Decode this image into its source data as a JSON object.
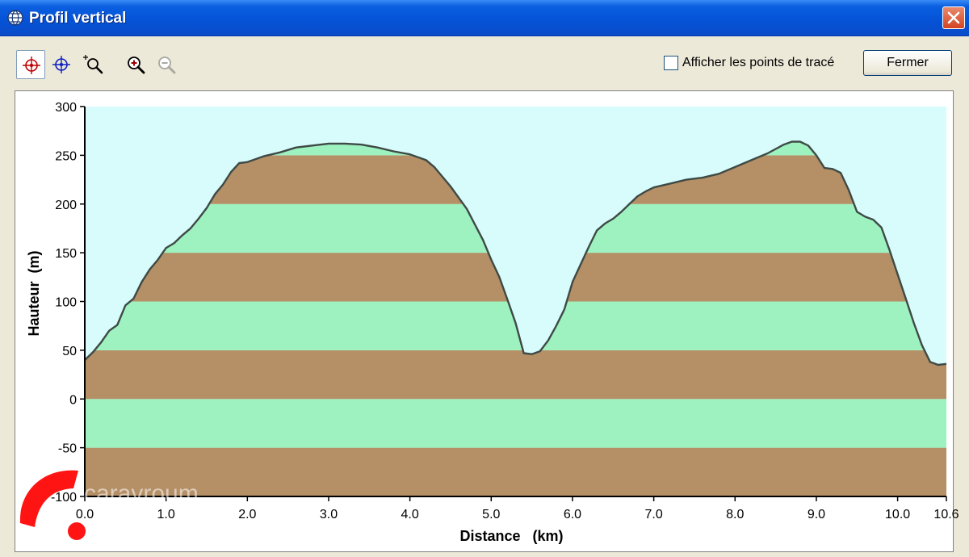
{
  "window": {
    "title": "Profil vertical"
  },
  "toolbar": {
    "tools": [
      {
        "name": "crosshair-red-tool",
        "active": true
      },
      {
        "name": "crosshair-blue-tool",
        "active": false
      },
      {
        "name": "zoom-box-tool",
        "active": false
      },
      {
        "name": "zoom-in-tool",
        "active": false
      },
      {
        "name": "zoom-out-tool",
        "active": false,
        "disabled": true
      }
    ],
    "show_points_label": "Afficher les points de tracé",
    "show_points_checked": false,
    "close_label": "Fermer"
  },
  "watermark_text": "caravroum",
  "chart_data": {
    "type": "area",
    "xlabel": "Distance   (km)",
    "ylabel": "Hauteur  (m)",
    "xlim": [
      0,
      10.6
    ],
    "ylim": [
      -100,
      300
    ],
    "x_ticks": [
      "0.0",
      "1.0",
      "2.0",
      "3.0",
      "4.0",
      "5.0",
      "6.0",
      "7.0",
      "8.0",
      "9.0",
      "10.0",
      "10.6"
    ],
    "y_ticks": [
      "300",
      "250",
      "200",
      "150",
      "100",
      "50",
      "0",
      "-50",
      "-100"
    ],
    "band_colors": [
      "#b58f65",
      "#9ef2c0"
    ],
    "sky_color": "#d8fcfc",
    "line_color": "#3e4a46",
    "points": [
      [
        0.0,
        40
      ],
      [
        0.1,
        48
      ],
      [
        0.2,
        58
      ],
      [
        0.3,
        70
      ],
      [
        0.4,
        76
      ],
      [
        0.5,
        96
      ],
      [
        0.6,
        103
      ],
      [
        0.7,
        120
      ],
      [
        0.8,
        133
      ],
      [
        0.9,
        143
      ],
      [
        1.0,
        155
      ],
      [
        1.1,
        160
      ],
      [
        1.2,
        168
      ],
      [
        1.3,
        175
      ],
      [
        1.4,
        185
      ],
      [
        1.5,
        196
      ],
      [
        1.6,
        210
      ],
      [
        1.7,
        220
      ],
      [
        1.8,
        233
      ],
      [
        1.9,
        242
      ],
      [
        2.0,
        243
      ],
      [
        2.2,
        249
      ],
      [
        2.4,
        253
      ],
      [
        2.6,
        258
      ],
      [
        2.8,
        260
      ],
      [
        3.0,
        262
      ],
      [
        3.2,
        262
      ],
      [
        3.4,
        261
      ],
      [
        3.6,
        258
      ],
      [
        3.8,
        254
      ],
      [
        4.0,
        251
      ],
      [
        4.2,
        245
      ],
      [
        4.3,
        238
      ],
      [
        4.5,
        218
      ],
      [
        4.7,
        195
      ],
      [
        4.9,
        163
      ],
      [
        5.0,
        143
      ],
      [
        5.1,
        125
      ],
      [
        5.2,
        102
      ],
      [
        5.3,
        78
      ],
      [
        5.4,
        47
      ],
      [
        5.5,
        46
      ],
      [
        5.6,
        49
      ],
      [
        5.7,
        60
      ],
      [
        5.8,
        75
      ],
      [
        5.9,
        92
      ],
      [
        6.0,
        120
      ],
      [
        6.1,
        138
      ],
      [
        6.2,
        156
      ],
      [
        6.3,
        173
      ],
      [
        6.4,
        180
      ],
      [
        6.5,
        185
      ],
      [
        6.6,
        192
      ],
      [
        6.7,
        200
      ],
      [
        6.8,
        208
      ],
      [
        6.9,
        213
      ],
      [
        7.0,
        217
      ],
      [
        7.2,
        221
      ],
      [
        7.4,
        225
      ],
      [
        7.6,
        227
      ],
      [
        7.8,
        231
      ],
      [
        8.0,
        238
      ],
      [
        8.2,
        245
      ],
      [
        8.4,
        252
      ],
      [
        8.6,
        261
      ],
      [
        8.7,
        264
      ],
      [
        8.8,
        264
      ],
      [
        8.9,
        260
      ],
      [
        9.0,
        250
      ],
      [
        9.1,
        237
      ],
      [
        9.2,
        236
      ],
      [
        9.3,
        232
      ],
      [
        9.4,
        214
      ],
      [
        9.5,
        192
      ],
      [
        9.6,
        187
      ],
      [
        9.7,
        184
      ],
      [
        9.8,
        176
      ],
      [
        9.9,
        153
      ],
      [
        10.0,
        128
      ],
      [
        10.1,
        103
      ],
      [
        10.2,
        78
      ],
      [
        10.3,
        55
      ],
      [
        10.4,
        38
      ],
      [
        10.5,
        35
      ],
      [
        10.6,
        36
      ]
    ]
  }
}
